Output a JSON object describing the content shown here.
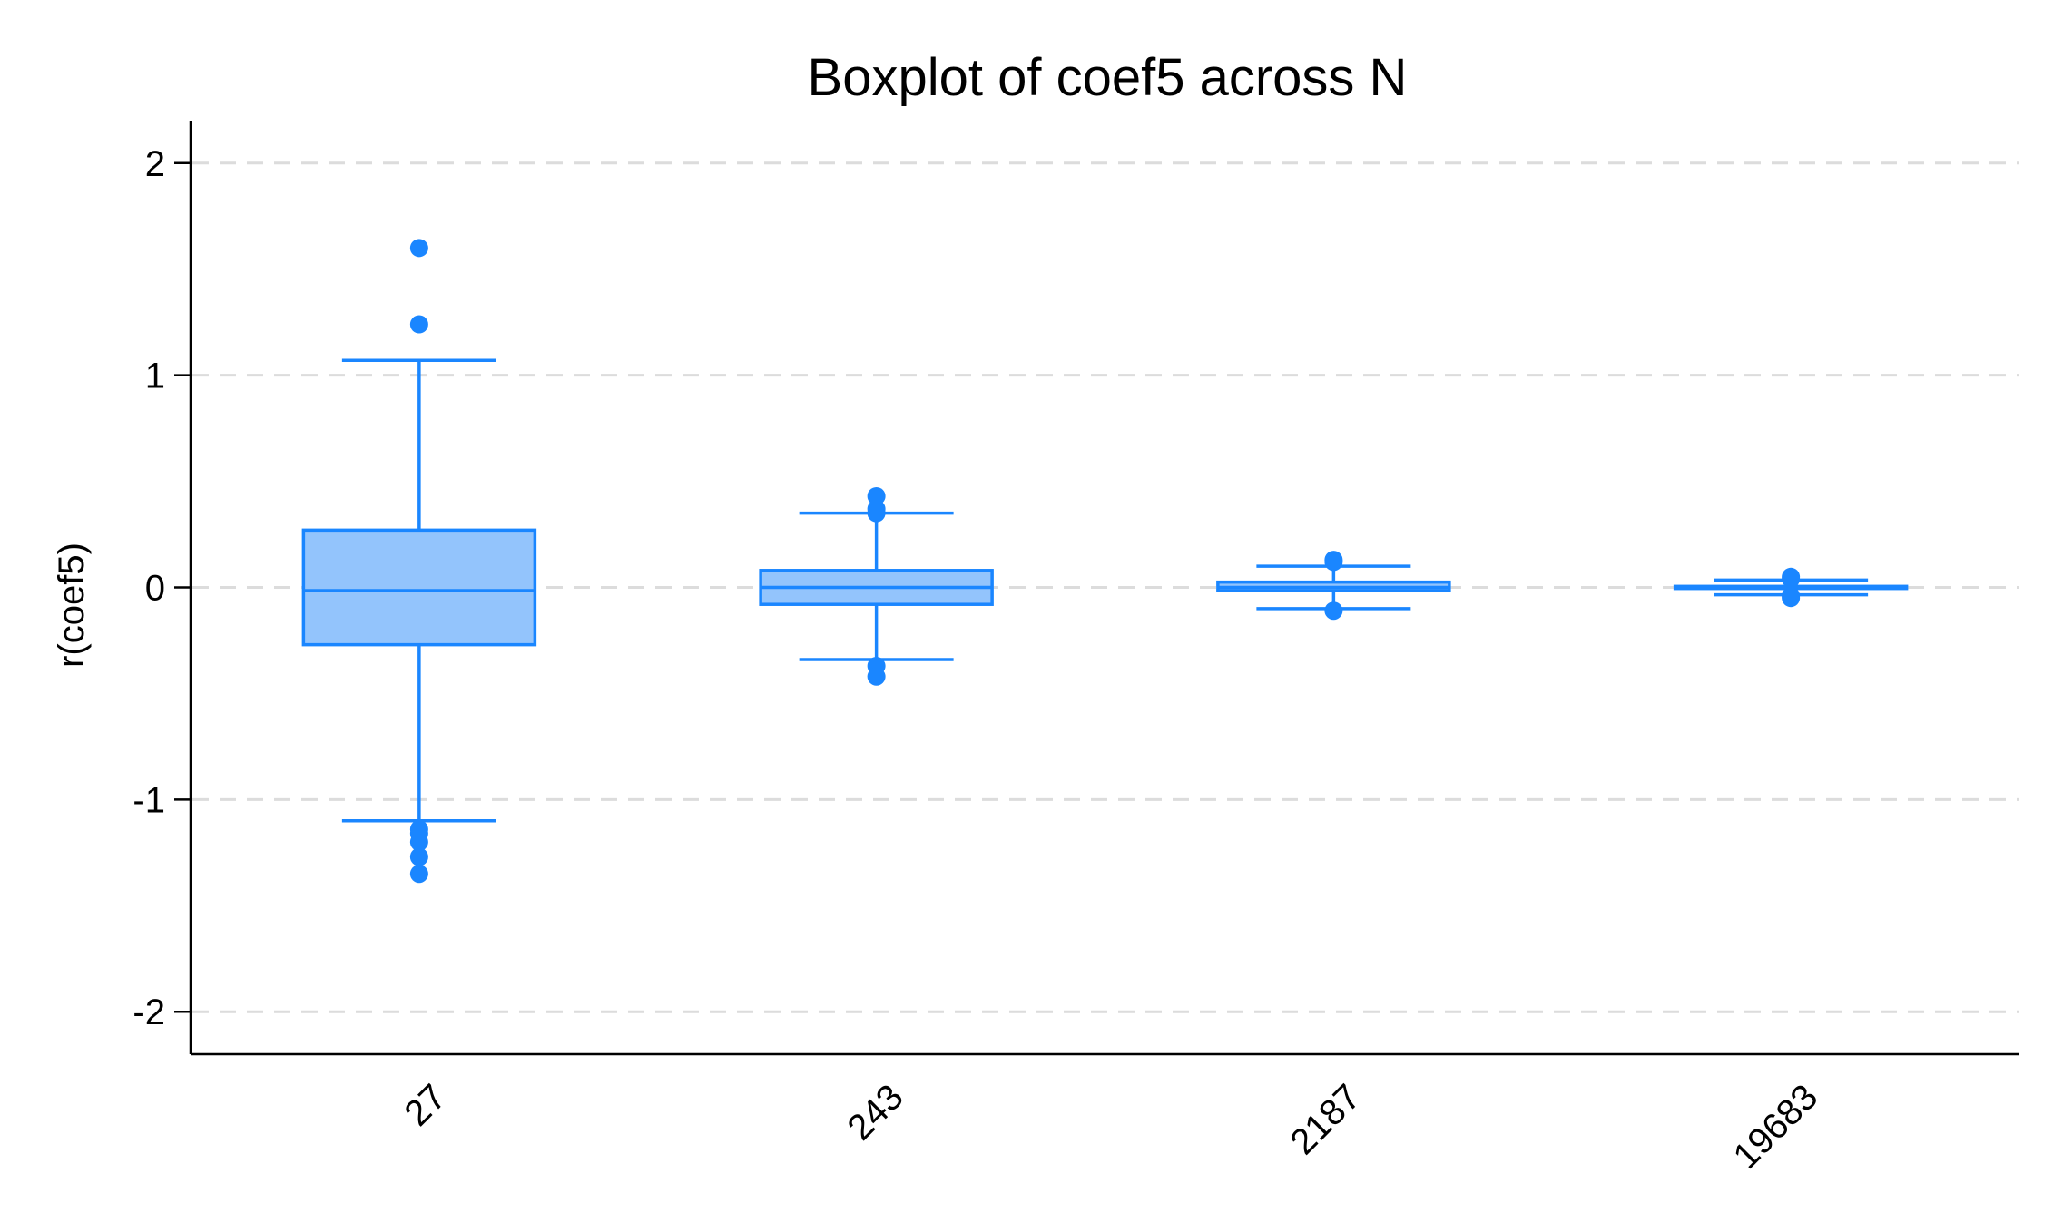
{
  "chart_data": {
    "type": "box",
    "title": "Boxplot of coef5 across N",
    "xlabel": "",
    "ylabel": "r(coef5)",
    "ylim": [
      -2.2,
      2.2
    ],
    "yticks": [
      2,
      1,
      0,
      -1,
      -2
    ],
    "ytick_labels": [
      "2",
      "1",
      "0",
      "-1",
      "-2"
    ],
    "grid": true,
    "colors": {
      "stroke": "#1a86ff",
      "fill": "#93c4fc",
      "grid": "#dcdcdc"
    },
    "categories": [
      "27",
      "243",
      "2187",
      "19683"
    ],
    "boxes": [
      {
        "category": "27",
        "whisker_low": -1.1,
        "q1": -0.27,
        "median": -0.015,
        "q3": 0.27,
        "whisker_high": 1.07,
        "outliers": [
          1.6,
          1.24,
          -1.14,
          -1.16,
          -1.2,
          -1.27,
          -1.35
        ]
      },
      {
        "category": "243",
        "whisker_low": -0.34,
        "q1": -0.08,
        "median": 0.0,
        "q3": 0.08,
        "whisker_high": 0.35,
        "outliers": [
          0.43,
          0.37,
          0.35,
          -0.37,
          -0.42
        ]
      },
      {
        "category": "2187",
        "whisker_low": -0.1,
        "q1": -0.015,
        "median": 0.0,
        "q3": 0.025,
        "whisker_high": 0.1,
        "outliers": [
          0.13,
          0.12,
          -0.11
        ]
      },
      {
        "category": "19683",
        "whisker_low": -0.035,
        "q1": -0.005,
        "median": 0.0,
        "q3": 0.005,
        "whisker_high": 0.035,
        "outliers": [
          0.05,
          0.04,
          -0.04,
          -0.05
        ]
      }
    ]
  }
}
